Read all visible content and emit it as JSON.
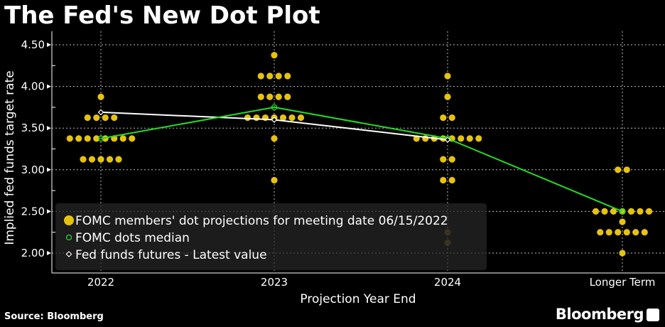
{
  "title": "The Fed's New Dot Plot",
  "source": "Source: Bloomberg",
  "brand": "Bloomberg",
  "chart_data": {
    "type": "scatter",
    "title": "The Fed's New Dot Plot",
    "xlabel": "Projection Year End",
    "ylabel": "Implied fed funds target rate",
    "categories": [
      "2022",
      "2023",
      "2024",
      "Longer Term"
    ],
    "ylim": [
      1.8,
      4.6
    ],
    "yticks": [
      "2.00",
      "2.50",
      "3.00",
      "3.50",
      "4.00",
      "4.50"
    ],
    "grid": true,
    "legend_placement": "bottom-left",
    "series": [
      {
        "name": "FOMC members' dot projections for meeting date 06/15/2022",
        "color": "#e6c20f",
        "marker": "dot",
        "dots": [
          [
            {
              "rate": 3.875,
              "count": 1
            },
            {
              "rate": 3.625,
              "count": 4
            },
            {
              "rate": 3.375,
              "count": 8
            },
            {
              "rate": 3.125,
              "count": 5
            }
          ],
          [
            {
              "rate": 4.375,
              "count": 1
            },
            {
              "rate": 4.125,
              "count": 4
            },
            {
              "rate": 3.875,
              "count": 4
            },
            {
              "rate": 3.625,
              "count": 7
            },
            {
              "rate": 3.375,
              "count": 1
            },
            {
              "rate": 2.875,
              "count": 1
            }
          ],
          [
            {
              "rate": 4.125,
              "count": 1
            },
            {
              "rate": 3.875,
              "count": 1
            },
            {
              "rate": 3.625,
              "count": 2
            },
            {
              "rate": 3.375,
              "count": 8
            },
            {
              "rate": 3.125,
              "count": 2
            },
            {
              "rate": 2.875,
              "count": 2
            },
            {
              "rate": 2.25,
              "count": 1
            },
            {
              "rate": 2.125,
              "count": 1
            }
          ],
          [
            {
              "rate": 3.0,
              "count": 2
            },
            {
              "rate": 2.5,
              "count": 7
            },
            {
              "rate": 2.375,
              "count": 1
            },
            {
              "rate": 2.25,
              "count": 6
            },
            {
              "rate": 2.0,
              "count": 1
            }
          ]
        ]
      },
      {
        "name": "FOMC dots median",
        "color": "#22dd22",
        "marker": "circle",
        "values": [
          3.375,
          3.75,
          3.375,
          2.5
        ]
      },
      {
        "name": "Fed funds futures - Latest value",
        "color": "#ffffff",
        "marker": "diamond",
        "values": [
          3.69,
          3.6,
          3.36,
          null
        ]
      }
    ]
  }
}
